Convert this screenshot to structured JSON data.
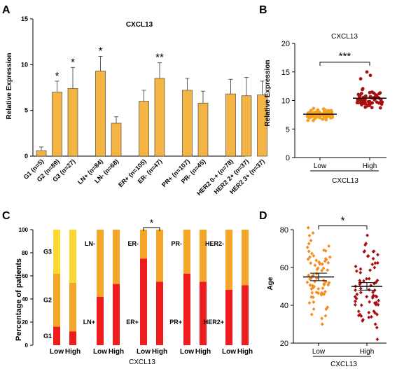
{
  "chart_data": [
    {
      "panel": "A",
      "type": "bar",
      "title": "CXCL13",
      "ylabel": "Relative Expression",
      "ylim": [
        0,
        15
      ],
      "yticks": [
        0,
        5,
        10,
        15
      ],
      "color": "#F5B545",
      "groups": [
        {
          "categories": [
            "G1 (n=5)",
            "G2 (n=89)",
            "G3 (n=27)"
          ],
          "values": [
            0.6,
            7.0,
            7.4
          ],
          "errors": [
            0.4,
            1.2,
            2.3
          ]
        },
        {
          "categories": [
            "LN+ (n=84)",
            "LN- (n=68)"
          ],
          "values": [
            9.3,
            3.6
          ],
          "errors": [
            1.6,
            0.7
          ]
        },
        {
          "categories": [
            "ER+ (n=105)",
            "ER- (n=47)"
          ],
          "values": [
            6.0,
            8.5
          ],
          "errors": [
            1.2,
            1.7
          ]
        },
        {
          "categories": [
            "PR+ (n=107)",
            "PR- (n=45)"
          ],
          "values": [
            7.2,
            5.8
          ],
          "errors": [
            1.3,
            1.3
          ]
        },
        {
          "categories": [
            "HER2 0-+ (n=78)",
            "HER2 2+ (n=37)",
            "HER2 3+ (n=37)"
          ],
          "values": [
            6.8,
            6.6,
            6.7
          ],
          "errors": [
            1.6,
            2.0,
            1.5
          ]
        }
      ],
      "annotations": [
        {
          "text": "*",
          "category": "G2 (n=89)"
        },
        {
          "text": "*",
          "category": "G3 (n=27)"
        },
        {
          "text": "*",
          "category": "LN+ (n=84)"
        },
        {
          "text": "**",
          "category": "ER- (n=47)"
        }
      ]
    },
    {
      "panel": "B",
      "type": "scatter",
      "title": "CXCL13",
      "ylabel": "Relative Expression",
      "xlabel": "CXCL13",
      "categories": [
        "Low",
        "High"
      ],
      "ylim": [
        0,
        20
      ],
      "yticks": [
        0,
        5,
        10,
        15,
        20
      ],
      "means": [
        7.6,
        10.4
      ],
      "spread": [
        [
          6.5,
          8.6
        ],
        [
          8.7,
          15.0
        ]
      ],
      "colors": [
        "#F5A020",
        "#A81010"
      ],
      "significance": "***"
    },
    {
      "panel": "C",
      "type": "bar",
      "stacked": true,
      "ylabel": "Percentage of patients",
      "xlabel": "CXCL13",
      "ylim": [
        0,
        100
      ],
      "yticks": [
        0,
        20,
        40,
        60,
        80,
        100
      ],
      "colors": {
        "red": "#EE1C1C",
        "orange": "#F5A528",
        "yellow": "#FCD732"
      },
      "groups": [
        {
          "bars": [
            {
              "label": "Low",
              "segments": [
                16,
                46,
                38
              ]
            },
            {
              "label": "High",
              "segments": [
                12,
                42,
                46
              ]
            }
          ],
          "segment_colors": [
            "red",
            "orange",
            "yellow"
          ],
          "labels": [
            "G1",
            "G2",
            "G3"
          ]
        },
        {
          "bars": [
            {
              "label": "Low",
              "segments": [
                42,
                58
              ]
            },
            {
              "label": "High",
              "segments": [
                53,
                47
              ]
            }
          ],
          "segment_colors": [
            "red",
            "orange"
          ],
          "labels": [
            "LN+",
            "LN-"
          ]
        },
        {
          "bars": [
            {
              "label": "Low",
              "segments": [
                75,
                25
              ]
            },
            {
              "label": "High",
              "segments": [
                55,
                45
              ]
            }
          ],
          "segment_colors": [
            "red",
            "orange"
          ],
          "labels": [
            "ER+",
            "ER-"
          ],
          "significance": "*"
        },
        {
          "bars": [
            {
              "label": "Low",
              "segments": [
                62,
                38
              ]
            },
            {
              "label": "High",
              "segments": [
                55,
                45
              ]
            }
          ],
          "segment_colors": [
            "red",
            "orange"
          ],
          "labels": [
            "PR+",
            "PR-"
          ]
        },
        {
          "bars": [
            {
              "label": "Low",
              "segments": [
                48,
                52
              ]
            },
            {
              "label": "High",
              "segments": [
                52,
                48
              ]
            }
          ],
          "segment_colors": [
            "red",
            "orange"
          ],
          "labels": [
            "HER2+",
            "HER2-"
          ]
        }
      ]
    },
    {
      "panel": "D",
      "type": "scatter",
      "ylabel": "Age",
      "xlabel": "CXCL13",
      "categories": [
        "Low",
        "High"
      ],
      "ylim": [
        20,
        80
      ],
      "yticks": [
        20,
        40,
        60,
        80
      ],
      "means": [
        55,
        50
      ],
      "sem": [
        2,
        2
      ],
      "spread": [
        [
          30,
          81
        ],
        [
          22,
          77
        ]
      ],
      "colors": [
        "#F58A1E",
        "#A81010"
      ],
      "significance": "*"
    }
  ]
}
